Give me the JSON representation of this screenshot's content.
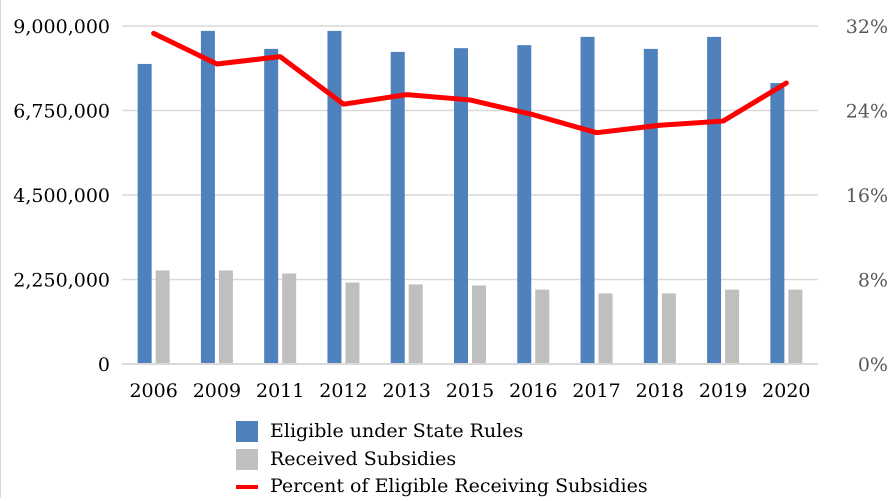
{
  "chart_data": {
    "type": "bar",
    "title": "",
    "xlabel": "",
    "ylabel": "",
    "y2label": "",
    "categories": [
      "2006",
      "2009",
      "2011",
      "2012",
      "2013",
      "2015",
      "2016",
      "2017",
      "2018",
      "2019",
      "2020"
    ],
    "series": [
      {
        "name": "Eligible under State Rules",
        "type": "bar",
        "axis": "left",
        "color": "#4f81bd",
        "values": [
          7990000,
          8870000,
          8390000,
          8870000,
          8310000,
          8410000,
          8490000,
          8710000,
          8390000,
          8710000,
          7480000
        ]
      },
      {
        "name": "Received Subsidies",
        "type": "bar",
        "axis": "left",
        "color": "#bfbfbf",
        "values": [
          2490000,
          2490000,
          2410000,
          2170000,
          2120000,
          2090000,
          1980000,
          1880000,
          1880000,
          1980000,
          1980000
        ]
      },
      {
        "name": "Percent of Eligible Receiving Subsidies",
        "type": "line",
        "axis": "right",
        "color": "#ff0000",
        "values": [
          31.3,
          28.4,
          29.1,
          24.6,
          25.5,
          25.0,
          23.6,
          21.9,
          22.6,
          23.0,
          26.6
        ]
      }
    ],
    "y_left": {
      "ylim": [
        0,
        9000000
      ],
      "ticks": [
        0,
        2250000,
        4500000,
        6750000,
        9000000
      ],
      "tick_labels": [
        "0",
        "2,250,000",
        "4,500,000",
        "6,750,000",
        "9,000,000"
      ]
    },
    "y_right": {
      "ylim": [
        0,
        32
      ],
      "ticks": [
        0,
        8,
        16,
        24,
        32
      ],
      "tick_labels": [
        "0%",
        "8%",
        "16%",
        "24%",
        "32%"
      ]
    },
    "grid": true,
    "legend_position": "bottom"
  },
  "legend": {
    "items": [
      {
        "label": "Eligible under State Rules",
        "kind": "box",
        "color": "#4f81bd"
      },
      {
        "label": "Received Subsidies",
        "kind": "box",
        "color": "#bfbfbf"
      },
      {
        "label": "Percent of Eligible Receiving Subsidies",
        "kind": "line",
        "color": "#ff0000"
      }
    ]
  },
  "colors": {
    "grid": "#d9d9d9",
    "right_axis_text": "#595959"
  }
}
